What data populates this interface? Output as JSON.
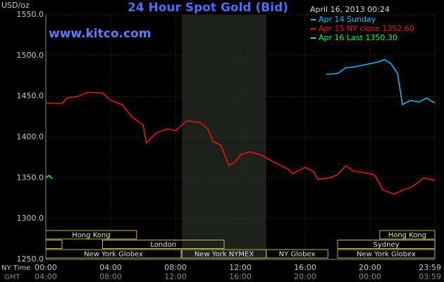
{
  "chart_data": {
    "type": "line",
    "title": "24 Hour Spot Gold (Bid)",
    "website": "www.kitco.com",
    "timestamp": "April 16, 2013 00:24",
    "y_label": "USD/oz",
    "x_label": "NY Time",
    "x2_label": "GMT",
    "xlim": [
      0,
      24
    ],
    "ylim": [
      1250,
      1550
    ],
    "yticks": [
      {
        "value": 1250,
        "label": "1250.0"
      },
      {
        "value": 1300,
        "label": "1300.0"
      },
      {
        "value": 1350,
        "label": "1350.0"
      },
      {
        "value": 1400,
        "label": "1400.0"
      },
      {
        "value": 1450,
        "label": "1450.0"
      },
      {
        "value": 1500,
        "label": "1500.0"
      },
      {
        "value": 1550,
        "label": "1550.0"
      }
    ],
    "xticks": [
      {
        "value": 0,
        "label": "00:00"
      },
      {
        "value": 4,
        "label": "04:00"
      },
      {
        "value": 8,
        "label": "08:00"
      },
      {
        "value": 12,
        "label": "12:00"
      },
      {
        "value": 16,
        "label": "16:00"
      },
      {
        "value": 20,
        "label": "20:00"
      },
      {
        "value": 23.983,
        "label": "23:59"
      }
    ],
    "x2ticks": [
      {
        "value": 0,
        "label": "04:00"
      },
      {
        "value": 4,
        "label": "08:00"
      },
      {
        "value": 8,
        "label": "12:00"
      },
      {
        "value": 12,
        "label": "16:00"
      },
      {
        "value": 16,
        "label": "20:00"
      },
      {
        "value": 20,
        "label": "00:00"
      },
      {
        "value": 23.983,
        "label": "03:59"
      }
    ],
    "grid": true,
    "highlight": [
      8.4,
      13.6
    ],
    "series": [
      {
        "name": "Apr 14 Sunday",
        "color": "#00c8ff",
        "x": [
          17.3,
          18,
          18.5,
          19,
          19.5,
          20,
          20.5,
          20.9,
          21.3,
          21.7,
          22,
          22.5,
          23,
          23.5,
          23.8,
          24
        ],
        "values": [
          1477,
          1478,
          1485,
          1486,
          1488,
          1490,
          1492,
          1495,
          1490,
          1478,
          1440,
          1445,
          1443,
          1448,
          1444,
          1442
        ]
      },
      {
        "name": "Apr 15 NY close 1352.60",
        "color": "#ff1010",
        "x": [
          0,
          1,
          1.3,
          2,
          2.6,
          3.5,
          4,
          4.7,
          5.3,
          6,
          6.2,
          6.8,
          7.5,
          8,
          8.7,
          9.5,
          10,
          10.3,
          10.8,
          11.3,
          11.7,
          12,
          12.6,
          13.3,
          14,
          14.5,
          15,
          15.2,
          16,
          16.5,
          16.8,
          17.5,
          18,
          18.5,
          19,
          19.5,
          20,
          20.3,
          20.8,
          21.5,
          22,
          22.5,
          23,
          23.3,
          24
        ],
        "values": [
          1442,
          1441,
          1448,
          1450,
          1455,
          1454,
          1445,
          1440,
          1425,
          1415,
          1393,
          1405,
          1410,
          1408,
          1420,
          1418,
          1410,
          1395,
          1390,
          1365,
          1370,
          1378,
          1382,
          1378,
          1370,
          1365,
          1360,
          1355,
          1363,
          1358,
          1348,
          1350,
          1354,
          1365,
          1358,
          1357,
          1355,
          1353,
          1335,
          1330,
          1335,
          1338,
          1345,
          1350,
          1347
        ]
      },
      {
        "name": "Apr 16 Last 1350.30",
        "color": "#20ff20",
        "x": [
          0,
          0.2,
          0.4
        ],
        "values": [
          1350,
          1353,
          1349
        ]
      }
    ],
    "session_rows": [
      [
        {
          "label": "Hong Kong",
          "start": 0,
          "end": 5.6
        },
        {
          "label": "Hong Kong",
          "start": 20.6,
          "end": 24
        }
      ],
      [
        {
          "label": null,
          "start": 0,
          "end": 1
        },
        {
          "label": "London",
          "start": 3.5,
          "end": 11
        },
        {
          "label": "Sydney",
          "start": 18,
          "end": 24
        }
      ],
      [
        {
          "label": "New York Globex",
          "start": 0,
          "end": 8.35
        },
        {
          "label": "New York NYMEX",
          "start": 8.4,
          "end": 13.6
        },
        {
          "label": "NY Globex",
          "start": 13.6,
          "end": 17.4
        },
        {
          "label": "New York Globex",
          "start": 18,
          "end": 24
        }
      ]
    ]
  }
}
